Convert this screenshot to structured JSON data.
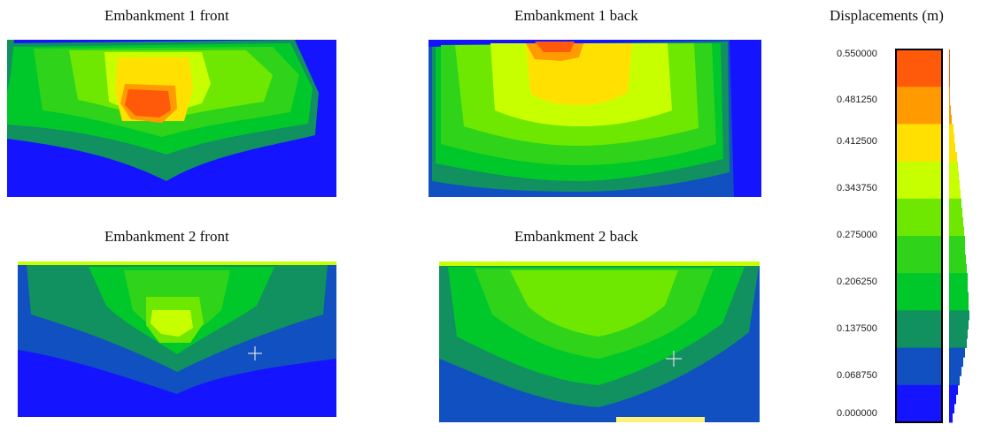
{
  "panels": [
    {
      "title": "Embankment 1 front"
    },
    {
      "title": "Embankment 1 back"
    },
    {
      "title": "Embankment 2 front"
    },
    {
      "title": "Embankment 2 back"
    }
  ],
  "legend": {
    "title": "Displacements (m)",
    "tick_labels": [
      "0.550000",
      "0.481250",
      "0.412500",
      "0.343750",
      "0.275000",
      "0.206250",
      "0.137500",
      "0.068750",
      "0.000000"
    ],
    "bin_colors_top_to_bottom": [
      "#ff5a0a",
      "#ff9a00",
      "#ffe000",
      "#c8ff00",
      "#6ee800",
      "#2fd41a",
      "#00c82a",
      "#119060",
      "#1050c0",
      "#1414ff"
    ],
    "histogram_shown": true
  },
  "colors": {
    "blue": "#1414ff",
    "dark_blue": "#1050c0",
    "teal": "#119060",
    "green": "#00c82a",
    "light_green": "#2fd41a",
    "yellow_green": "#6ee800",
    "lime": "#c8ff00",
    "yellow": "#ffe000",
    "orange": "#ff9a00",
    "red_orange": "#ff5a0a"
  }
}
